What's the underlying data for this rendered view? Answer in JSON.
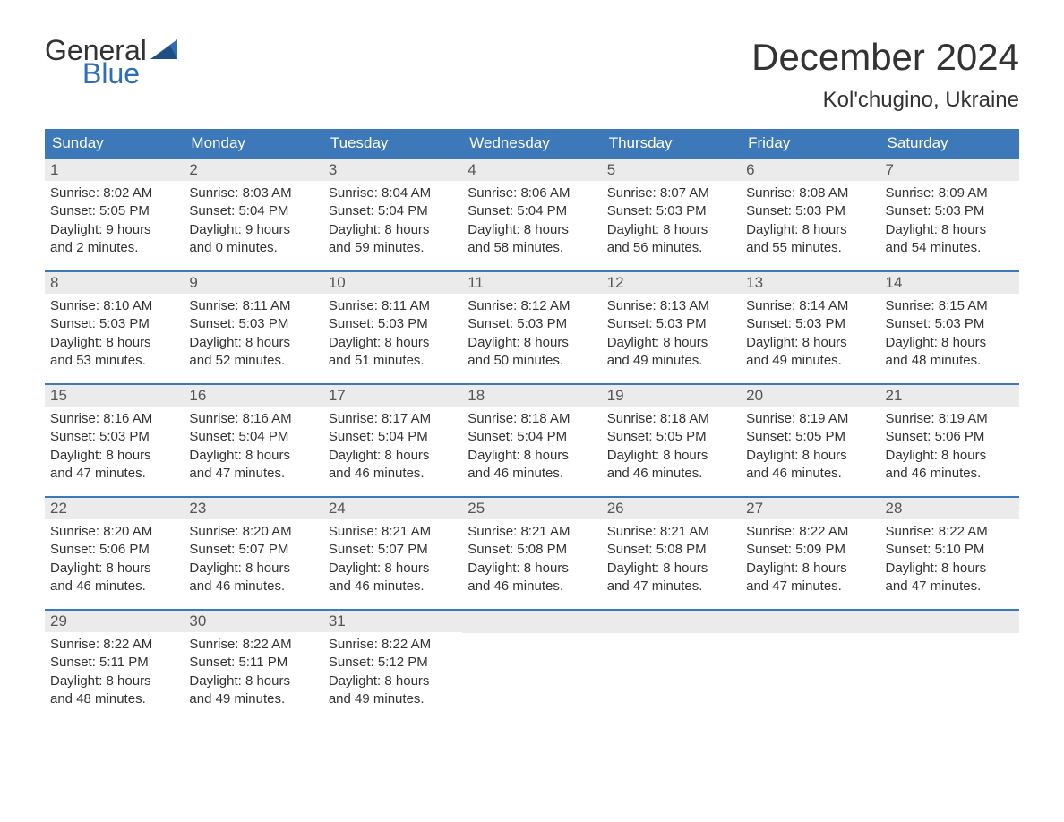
{
  "logo": {
    "text1": "General",
    "text2": "Blue"
  },
  "header": {
    "title": "December 2024",
    "location": "Kol'chugino, Ukraine",
    "title_color": "#333333",
    "brand_color": "#2f6eb5"
  },
  "calendar": {
    "header_bg": "#3d78b8",
    "header_text_color": "#ffffff",
    "daynum_bg": "#ebebeb",
    "rule_color": "#3d78b8",
    "days_of_week": [
      "Sunday",
      "Monday",
      "Tuesday",
      "Wednesday",
      "Thursday",
      "Friday",
      "Saturday"
    ],
    "weeks": [
      [
        {
          "n": "1",
          "sunrise": "Sunrise: 8:02 AM",
          "sunset": "Sunset: 5:05 PM",
          "dl1": "Daylight: 9 hours",
          "dl2": "and 2 minutes."
        },
        {
          "n": "2",
          "sunrise": "Sunrise: 8:03 AM",
          "sunset": "Sunset: 5:04 PM",
          "dl1": "Daylight: 9 hours",
          "dl2": "and 0 minutes."
        },
        {
          "n": "3",
          "sunrise": "Sunrise: 8:04 AM",
          "sunset": "Sunset: 5:04 PM",
          "dl1": "Daylight: 8 hours",
          "dl2": "and 59 minutes."
        },
        {
          "n": "4",
          "sunrise": "Sunrise: 8:06 AM",
          "sunset": "Sunset: 5:04 PM",
          "dl1": "Daylight: 8 hours",
          "dl2": "and 58 minutes."
        },
        {
          "n": "5",
          "sunrise": "Sunrise: 8:07 AM",
          "sunset": "Sunset: 5:03 PM",
          "dl1": "Daylight: 8 hours",
          "dl2": "and 56 minutes."
        },
        {
          "n": "6",
          "sunrise": "Sunrise: 8:08 AM",
          "sunset": "Sunset: 5:03 PM",
          "dl1": "Daylight: 8 hours",
          "dl2": "and 55 minutes."
        },
        {
          "n": "7",
          "sunrise": "Sunrise: 8:09 AM",
          "sunset": "Sunset: 5:03 PM",
          "dl1": "Daylight: 8 hours",
          "dl2": "and 54 minutes."
        }
      ],
      [
        {
          "n": "8",
          "sunrise": "Sunrise: 8:10 AM",
          "sunset": "Sunset: 5:03 PM",
          "dl1": "Daylight: 8 hours",
          "dl2": "and 53 minutes."
        },
        {
          "n": "9",
          "sunrise": "Sunrise: 8:11 AM",
          "sunset": "Sunset: 5:03 PM",
          "dl1": "Daylight: 8 hours",
          "dl2": "and 52 minutes."
        },
        {
          "n": "10",
          "sunrise": "Sunrise: 8:11 AM",
          "sunset": "Sunset: 5:03 PM",
          "dl1": "Daylight: 8 hours",
          "dl2": "and 51 minutes."
        },
        {
          "n": "11",
          "sunrise": "Sunrise: 8:12 AM",
          "sunset": "Sunset: 5:03 PM",
          "dl1": "Daylight: 8 hours",
          "dl2": "and 50 minutes."
        },
        {
          "n": "12",
          "sunrise": "Sunrise: 8:13 AM",
          "sunset": "Sunset: 5:03 PM",
          "dl1": "Daylight: 8 hours",
          "dl2": "and 49 minutes."
        },
        {
          "n": "13",
          "sunrise": "Sunrise: 8:14 AM",
          "sunset": "Sunset: 5:03 PM",
          "dl1": "Daylight: 8 hours",
          "dl2": "and 49 minutes."
        },
        {
          "n": "14",
          "sunrise": "Sunrise: 8:15 AM",
          "sunset": "Sunset: 5:03 PM",
          "dl1": "Daylight: 8 hours",
          "dl2": "and 48 minutes."
        }
      ],
      [
        {
          "n": "15",
          "sunrise": "Sunrise: 8:16 AM",
          "sunset": "Sunset: 5:03 PM",
          "dl1": "Daylight: 8 hours",
          "dl2": "and 47 minutes."
        },
        {
          "n": "16",
          "sunrise": "Sunrise: 8:16 AM",
          "sunset": "Sunset: 5:04 PM",
          "dl1": "Daylight: 8 hours",
          "dl2": "and 47 minutes."
        },
        {
          "n": "17",
          "sunrise": "Sunrise: 8:17 AM",
          "sunset": "Sunset: 5:04 PM",
          "dl1": "Daylight: 8 hours",
          "dl2": "and 46 minutes."
        },
        {
          "n": "18",
          "sunrise": "Sunrise: 8:18 AM",
          "sunset": "Sunset: 5:04 PM",
          "dl1": "Daylight: 8 hours",
          "dl2": "and 46 minutes."
        },
        {
          "n": "19",
          "sunrise": "Sunrise: 8:18 AM",
          "sunset": "Sunset: 5:05 PM",
          "dl1": "Daylight: 8 hours",
          "dl2": "and 46 minutes."
        },
        {
          "n": "20",
          "sunrise": "Sunrise: 8:19 AM",
          "sunset": "Sunset: 5:05 PM",
          "dl1": "Daylight: 8 hours",
          "dl2": "and 46 minutes."
        },
        {
          "n": "21",
          "sunrise": "Sunrise: 8:19 AM",
          "sunset": "Sunset: 5:06 PM",
          "dl1": "Daylight: 8 hours",
          "dl2": "and 46 minutes."
        }
      ],
      [
        {
          "n": "22",
          "sunrise": "Sunrise: 8:20 AM",
          "sunset": "Sunset: 5:06 PM",
          "dl1": "Daylight: 8 hours",
          "dl2": "and 46 minutes."
        },
        {
          "n": "23",
          "sunrise": "Sunrise: 8:20 AM",
          "sunset": "Sunset: 5:07 PM",
          "dl1": "Daylight: 8 hours",
          "dl2": "and 46 minutes."
        },
        {
          "n": "24",
          "sunrise": "Sunrise: 8:21 AM",
          "sunset": "Sunset: 5:07 PM",
          "dl1": "Daylight: 8 hours",
          "dl2": "and 46 minutes."
        },
        {
          "n": "25",
          "sunrise": "Sunrise: 8:21 AM",
          "sunset": "Sunset: 5:08 PM",
          "dl1": "Daylight: 8 hours",
          "dl2": "and 46 minutes."
        },
        {
          "n": "26",
          "sunrise": "Sunrise: 8:21 AM",
          "sunset": "Sunset: 5:08 PM",
          "dl1": "Daylight: 8 hours",
          "dl2": "and 47 minutes."
        },
        {
          "n": "27",
          "sunrise": "Sunrise: 8:22 AM",
          "sunset": "Sunset: 5:09 PM",
          "dl1": "Daylight: 8 hours",
          "dl2": "and 47 minutes."
        },
        {
          "n": "28",
          "sunrise": "Sunrise: 8:22 AM",
          "sunset": "Sunset: 5:10 PM",
          "dl1": "Daylight: 8 hours",
          "dl2": "and 47 minutes."
        }
      ],
      [
        {
          "n": "29",
          "sunrise": "Sunrise: 8:22 AM",
          "sunset": "Sunset: 5:11 PM",
          "dl1": "Daylight: 8 hours",
          "dl2": "and 48 minutes."
        },
        {
          "n": "30",
          "sunrise": "Sunrise: 8:22 AM",
          "sunset": "Sunset: 5:11 PM",
          "dl1": "Daylight: 8 hours",
          "dl2": "and 49 minutes."
        },
        {
          "n": "31",
          "sunrise": "Sunrise: 8:22 AM",
          "sunset": "Sunset: 5:12 PM",
          "dl1": "Daylight: 8 hours",
          "dl2": "and 49 minutes."
        },
        null,
        null,
        null,
        null
      ]
    ]
  }
}
